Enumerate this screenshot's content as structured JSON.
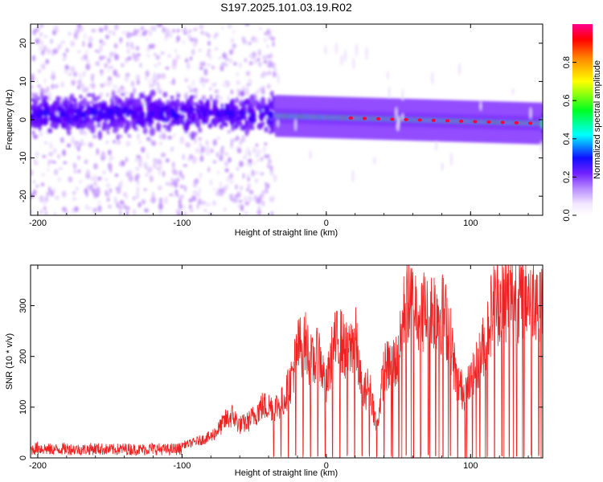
{
  "title": "S197.2025.101.03.19.R02",
  "chart_data": [
    {
      "type": "heatmap",
      "xlabel": "Height of straight line (km)",
      "ylabel": "Frequency (Hz)",
      "xlim": [
        -205,
        150
      ],
      "ylim": [
        -25,
        25
      ],
      "xticks": [
        -200,
        -100,
        0,
        100
      ],
      "yticks": [
        -20,
        -10,
        0,
        10,
        20
      ],
      "colorbar": {
        "label": "Normalized spectral amplitude",
        "range": [
          0.0,
          1.0
        ],
        "ticks": [
          0.0,
          0.2,
          0.4,
          0.6,
          0.8
        ],
        "colors": [
          "#ffffff",
          "#e0c8ff",
          "#a060ff",
          "#6000ff",
          "#0000ff",
          "#00ffff",
          "#00ff00",
          "#ffff00",
          "#ff8000",
          "#ff0000",
          "#ff0080"
        ]
      },
      "segments": [
        {
          "x_start": -205,
          "x_end": -35,
          "center_freq_hz": 1.5,
          "core_width_hz": 12,
          "peak_amplitude": 0.3,
          "noise_spread_hz": 25
        },
        {
          "x_start": -35,
          "x_end": 150,
          "center_freq_hz": 1.0,
          "trend_end_freq_hz": -1.0,
          "core_width_hz": 2.5,
          "peak_amplitude": 0.95
        }
      ]
    },
    {
      "type": "line",
      "xlabel": "Height of straight line (km)",
      "ylabel": "SNR (10 * v/v)",
      "xlim": [
        -205,
        150
      ],
      "ylim": [
        0,
        380
      ],
      "xticks": [
        -200,
        -100,
        0,
        100
      ],
      "yticks": [
        0,
        100,
        200,
        300
      ],
      "grid": false,
      "color": "#ee2222",
      "series": [
        {
          "x": [
            -205,
            -200,
            -190,
            -180,
            -170,
            -160,
            -150,
            -140,
            -130,
            -120,
            -110,
            -100,
            -95,
            -90,
            -85,
            -80,
            -75,
            -70,
            -65,
            -60,
            -55,
            -50,
            -45,
            -40,
            -35,
            -30,
            -25,
            -20,
            -15,
            -10,
            -5,
            0,
            5,
            10,
            15,
            20,
            25,
            30,
            35,
            40,
            45,
            50,
            55,
            60,
            65,
            70,
            75,
            80,
            85,
            90,
            95,
            100,
            105,
            110,
            115,
            120,
            125,
            130,
            135,
            140,
            145,
            150
          ],
          "y": [
            25,
            30,
            25,
            28,
            25,
            28,
            25,
            27,
            25,
            28,
            25,
            28,
            30,
            35,
            40,
            45,
            60,
            80,
            90,
            70,
            75,
            90,
            110,
            110,
            110,
            120,
            160,
            230,
            250,
            200,
            220,
            150,
            240,
            250,
            220,
            260,
            130,
            160,
            60,
            190,
            200,
            210,
            340,
            330,
            320,
            310,
            320,
            310,
            280,
            170,
            140,
            160,
            200,
            250,
            320,
            340,
            345,
            340,
            345,
            350,
            355,
            350
          ]
        }
      ]
    }
  ]
}
